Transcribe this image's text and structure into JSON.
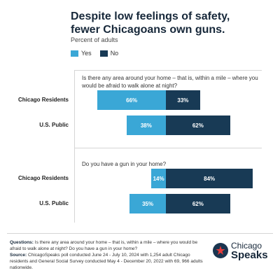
{
  "header": {
    "title": "Despite low feelings of safety, fewer Chicagoans own guns.",
    "subtitle": "Percent of adults"
  },
  "legend": [
    {
      "label": "Yes",
      "color": "#3aa7d6"
    },
    {
      "label": "No",
      "color": "#183a55"
    }
  ],
  "chart_data": {
    "type": "bar",
    "orientation": "horizontal-diverging",
    "subtitle": "Percent of adults",
    "series": [
      {
        "name": "Yes",
        "color": "#3aa7d6"
      },
      {
        "name": "No",
        "color": "#183a55"
      }
    ],
    "panels": [
      {
        "question": "Is there any area around your home – that is, within a mile – where you would be afraid to walk alone at night?",
        "rows": [
          {
            "label": "Chicago Residents",
            "yes": 66,
            "no": 33,
            "yes_label": "66%",
            "no_label": "33%"
          },
          {
            "label": "U.S. Public",
            "yes": 38,
            "no": 62,
            "yes_label": "38%",
            "no_label": "62%"
          }
        ]
      },
      {
        "question": "Do you have a gun in your home?",
        "rows": [
          {
            "label": "Chicago Residents",
            "yes": 14,
            "no": 84,
            "yes_label": "14%",
            "no_label": "84%"
          },
          {
            "label": "U.S. Public",
            "yes": 35,
            "no": 62,
            "yes_label": "35%",
            "no_label": "62%"
          }
        ]
      }
    ]
  },
  "footer": {
    "questions_label": "Questions:",
    "questions_text": "Is there any area around your home – that is, within a mile – where you would be afraid to walk alone at night? Do you have a gun in your home?",
    "source_label": "Source:",
    "source_text": "ChicagoSpeaks poll conducted June 24 - July 10, 2024 with 1,254 adult Chicago residents and General Social Survey conducted May 4 - December 20, 2022 with 69, 966 adults nationwide."
  },
  "brand": {
    "line1": "Chicago",
    "line2": "Speaks",
    "icon": "chicago-speaks-logo-icon"
  }
}
